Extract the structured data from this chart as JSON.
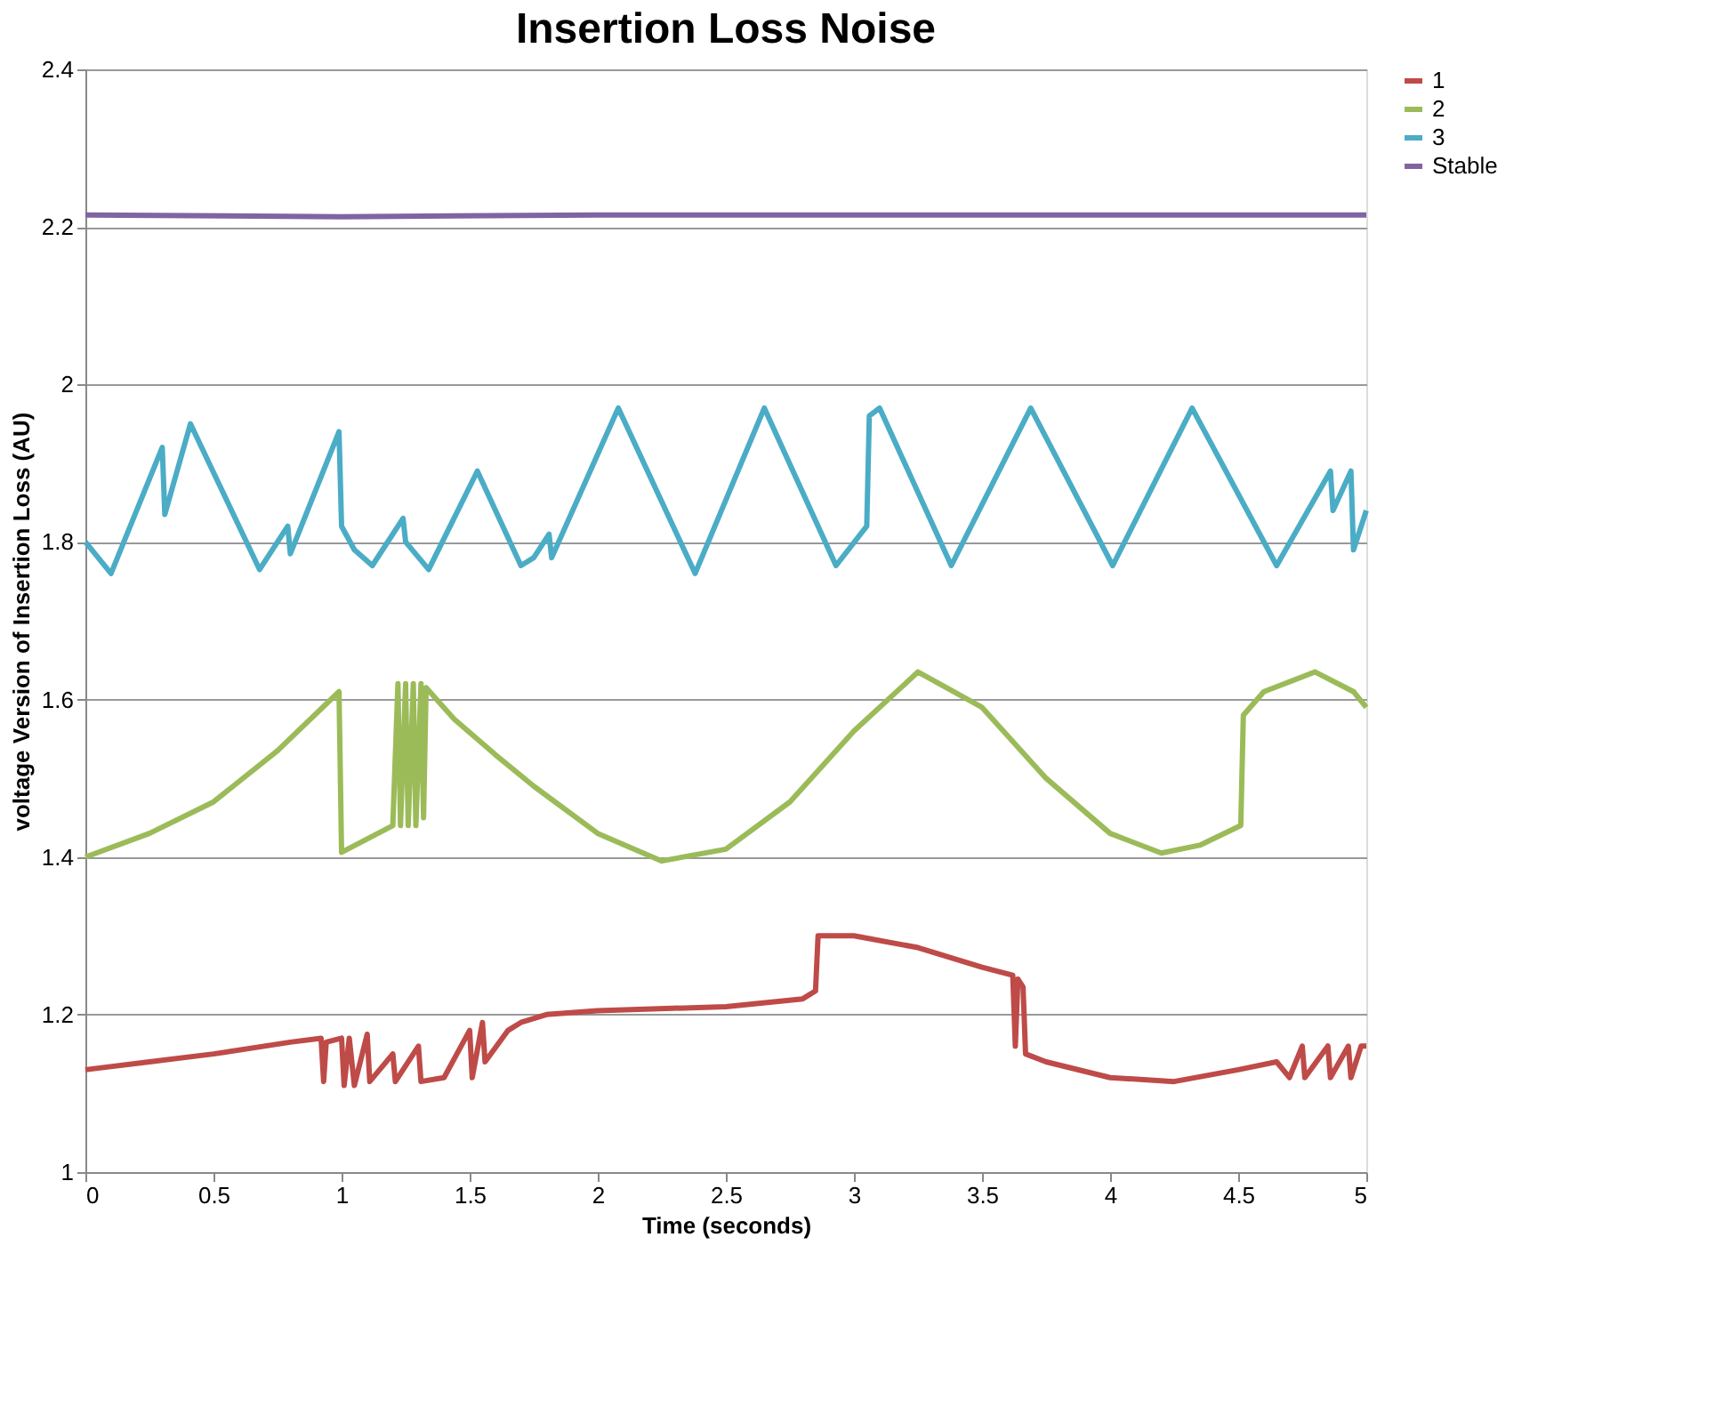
{
  "chart_data": {
    "type": "line",
    "title": "Insertion Loss Noise",
    "xlabel": "Time (seconds)",
    "ylabel": "voltage Version of Insertion Loss (AU)",
    "xlim": [
      0,
      5
    ],
    "xticks": [
      0,
      0.5,
      1,
      1.5,
      2,
      2.5,
      3,
      3.5,
      4,
      4.5,
      5
    ],
    "ylim": [
      1,
      2.4
    ],
    "yticks": [
      1,
      1.2,
      1.4,
      1.6,
      1.8,
      2,
      2.2,
      2.4
    ],
    "grid": "y",
    "legend": "right",
    "marker": "none",
    "line_style": "solid",
    "series": [
      {
        "name": "1",
        "color": "#be4b48",
        "x": [
          0,
          0.25,
          0.5,
          0.8,
          0.92,
          0.93,
          0.94,
          1.0,
          1.01,
          1.03,
          1.05,
          1.1,
          1.11,
          1.2,
          1.21,
          1.3,
          1.31,
          1.4,
          1.5,
          1.51,
          1.55,
          1.56,
          1.65,
          1.7,
          1.8,
          2.0,
          2.5,
          2.8,
          2.85,
          2.86,
          3.0,
          3.25,
          3.5,
          3.62,
          3.63,
          3.64,
          3.66,
          3.67,
          3.75,
          4.0,
          4.25,
          4.5,
          4.65,
          4.7,
          4.75,
          4.76,
          4.85,
          4.86,
          4.93,
          4.94,
          4.98,
          5.0
        ],
        "values": [
          1.13,
          1.14,
          1.15,
          1.165,
          1.17,
          1.115,
          1.165,
          1.17,
          1.11,
          1.17,
          1.11,
          1.175,
          1.115,
          1.15,
          1.115,
          1.16,
          1.115,
          1.12,
          1.18,
          1.12,
          1.19,
          1.14,
          1.18,
          1.19,
          1.2,
          1.205,
          1.21,
          1.22,
          1.23,
          1.3,
          1.3,
          1.285,
          1.26,
          1.25,
          1.16,
          1.245,
          1.235,
          1.15,
          1.14,
          1.12,
          1.115,
          1.13,
          1.14,
          1.12,
          1.16,
          1.12,
          1.16,
          1.12,
          1.16,
          1.12,
          1.16,
          1.16
        ]
      },
      {
        "name": "2",
        "color": "#9bbb59",
        "x": [
          0,
          0.25,
          0.5,
          0.75,
          0.99,
          1.0,
          1.2,
          1.22,
          1.23,
          1.25,
          1.26,
          1.28,
          1.29,
          1.31,
          1.32,
          1.33,
          1.44,
          1.6,
          1.75,
          2.0,
          2.25,
          2.5,
          2.75,
          3.0,
          3.25,
          3.5,
          3.75,
          4.0,
          4.2,
          4.35,
          4.51,
          4.52,
          4.6,
          4.8,
          4.95,
          5.0
        ],
        "values": [
          1.4,
          1.43,
          1.47,
          1.535,
          1.61,
          1.406,
          1.44,
          1.62,
          1.44,
          1.62,
          1.44,
          1.62,
          1.44,
          1.62,
          1.45,
          1.615,
          1.575,
          1.53,
          1.49,
          1.43,
          1.395,
          1.41,
          1.47,
          1.56,
          1.635,
          1.59,
          1.5,
          1.43,
          1.405,
          1.415,
          1.44,
          1.58,
          1.61,
          1.635,
          1.61,
          1.59
        ]
      },
      {
        "name": "3",
        "color": "#4bacc6",
        "x": [
          0,
          0.1,
          0.3,
          0.31,
          0.41,
          0.68,
          0.79,
          0.8,
          0.99,
          1.0,
          1.05,
          1.12,
          1.24,
          1.25,
          1.34,
          1.53,
          1.7,
          1.75,
          1.81,
          1.82,
          2.08,
          2.38,
          2.65,
          2.93,
          3.05,
          3.06,
          3.1,
          3.38,
          3.69,
          4.01,
          4.32,
          4.65,
          4.86,
          4.87,
          4.94,
          4.95,
          5.0
        ],
        "values": [
          1.8,
          1.76,
          1.92,
          1.835,
          1.95,
          1.765,
          1.82,
          1.785,
          1.94,
          1.82,
          1.79,
          1.77,
          1.83,
          1.8,
          1.765,
          1.89,
          1.77,
          1.78,
          1.81,
          1.78,
          1.97,
          1.76,
          1.97,
          1.77,
          1.82,
          1.96,
          1.97,
          1.77,
          1.97,
          1.77,
          1.97,
          1.77,
          1.89,
          1.84,
          1.89,
          1.79,
          1.84
        ]
      },
      {
        "name": "Stable",
        "color": "#8064a2",
        "x": [
          0,
          1,
          2,
          3,
          4,
          5
        ],
        "values": [
          2.215,
          2.213,
          2.215,
          2.215,
          2.215,
          2.215
        ]
      }
    ]
  }
}
